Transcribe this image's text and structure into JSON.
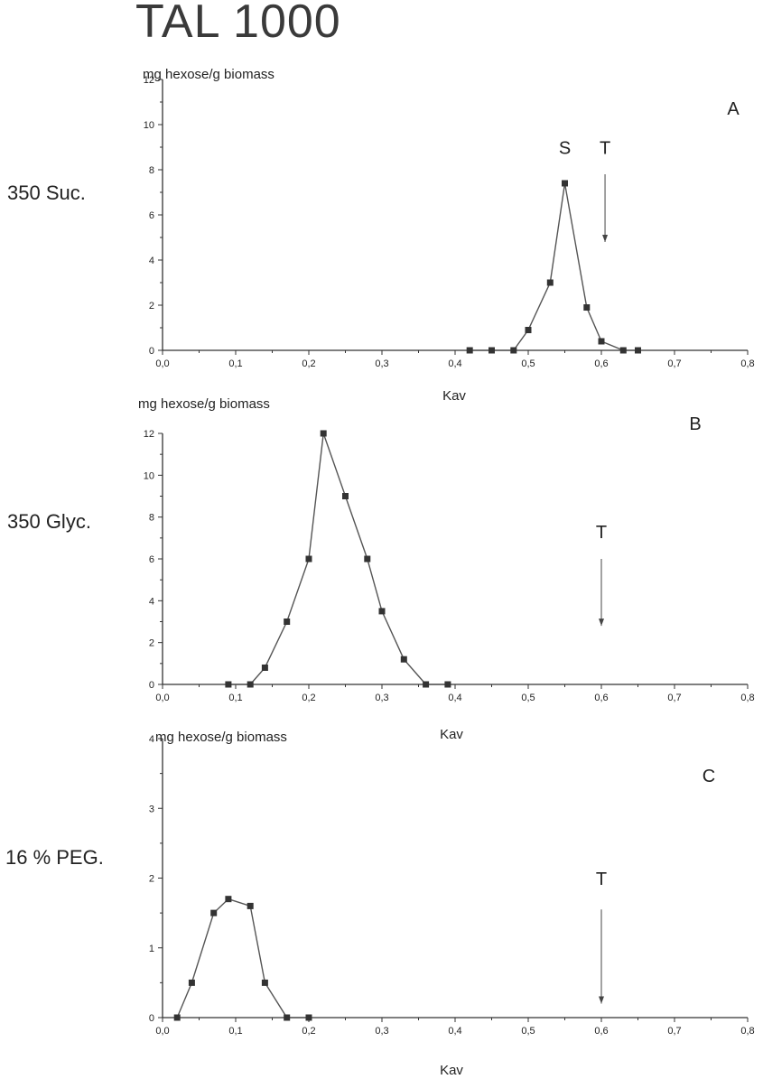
{
  "figure_title": "TAL 1000",
  "chart_data": [
    {
      "type": "line",
      "panel_label": "A",
      "row_label": "350 Suc.",
      "ylabel": "mg hexose/g biomass",
      "xlabel": "Kav",
      "xlim": [
        0,
        0.8
      ],
      "ylim": [
        0,
        12
      ],
      "x_ticks": [
        "0,0",
        "0,1",
        "0,2",
        "0,3",
        "0,4",
        "0,5",
        "0,6",
        "0,7",
        "0,8"
      ],
      "y_ticks": [
        "0",
        "2",
        "4",
        "6",
        "8",
        "10",
        "12"
      ],
      "series": [
        {
          "x": [
            0.42,
            0.45,
            0.48,
            0.5,
            0.53,
            0.55,
            0.58,
            0.6,
            0.63,
            0.65
          ],
          "y": [
            0,
            0,
            0,
            0.9,
            3.0,
            7.4,
            1.9,
            0.4,
            0,
            0
          ]
        }
      ],
      "annotations": [
        {
          "text": "S",
          "x": 0.55,
          "y": 8.7,
          "arrow": false
        },
        {
          "text": "T",
          "x": 0.605,
          "y": 8.7,
          "arrow": true,
          "arrow_from": 7.8,
          "arrow_to": 4.8
        }
      ]
    },
    {
      "type": "line",
      "panel_label": "B",
      "row_label": "350 Glyc.",
      "ylabel": "mg hexose/g biomass",
      "xlabel": "Kav",
      "xlim": [
        0,
        0.8
      ],
      "ylim": [
        0,
        12
      ],
      "x_ticks": [
        "0,0",
        "0,1",
        "0,2",
        "0,3",
        "0,4",
        "0,5",
        "0,6",
        "0,7",
        "0,8"
      ],
      "y_ticks": [
        "0",
        "2",
        "4",
        "6",
        "8",
        "10",
        "12"
      ],
      "series": [
        {
          "x": [
            0.09,
            0.12,
            0.14,
            0.17,
            0.2,
            0.22,
            0.25,
            0.28,
            0.3,
            0.33,
            0.36,
            0.39
          ],
          "y": [
            0,
            0,
            0.8,
            3.0,
            6.0,
            12.0,
            9.0,
            6.0,
            3.5,
            1.2,
            0,
            0
          ]
        }
      ],
      "annotations": [
        {
          "text": "T",
          "x": 0.6,
          "y": 7.0,
          "arrow": true,
          "arrow_from": 6.0,
          "arrow_to": 2.8
        }
      ]
    },
    {
      "type": "line",
      "panel_label": "C",
      "row_label": "16 % PEG.",
      "ylabel": "mg hexose/g biomass",
      "xlabel": "Kav",
      "xlim": [
        0,
        0.8
      ],
      "ylim": [
        0,
        4
      ],
      "x_ticks": [
        "0,0",
        "0,1",
        "0,2",
        "0,3",
        "0,4",
        "0,5",
        "0,6",
        "0,7",
        "0,8"
      ],
      "y_ticks": [
        "0",
        "1",
        "2",
        "3",
        "4"
      ],
      "series": [
        {
          "x": [
            0.02,
            0.04,
            0.07,
            0.09,
            0.12,
            0.14,
            0.17,
            0.2
          ],
          "y": [
            0,
            0.5,
            1.5,
            1.7,
            1.6,
            0.5,
            0,
            0
          ]
        }
      ],
      "annotations": [
        {
          "text": "T",
          "x": 0.6,
          "y": 1.9,
          "arrow": true,
          "arrow_from": 1.55,
          "arrow_to": 0.2
        }
      ]
    }
  ],
  "colors": {
    "line": "#555555",
    "marker": "#333333",
    "axis": "#333333"
  }
}
